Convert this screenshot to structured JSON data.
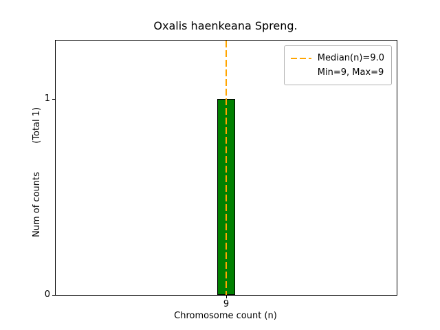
{
  "figure": {
    "title": "Oxalis haenkeana Spreng.",
    "xlabel": "Chromosome count (n)",
    "ylabel": "Num of counts          (Total 1)"
  },
  "chart_data": {
    "type": "bar",
    "title": "Oxalis haenkeana Spreng.",
    "xlabel": "Chromosome count (n)",
    "ylabel": "Num of counts    (Total 1)",
    "categories": [
      "9"
    ],
    "values": [
      1
    ],
    "yticks": [
      0,
      1
    ],
    "ylim": [
      0,
      1.3
    ],
    "total_label": "(Total 1)",
    "median": 9.0,
    "min": 9,
    "max": 9,
    "bar_color": "#008000",
    "bar_edge_color": "#000000",
    "median_line_color": "#ffa500",
    "legend": [
      "Median(n)=9.0",
      "Min=9, Max=9"
    ],
    "legend_position": "upper right",
    "grid": false
  }
}
